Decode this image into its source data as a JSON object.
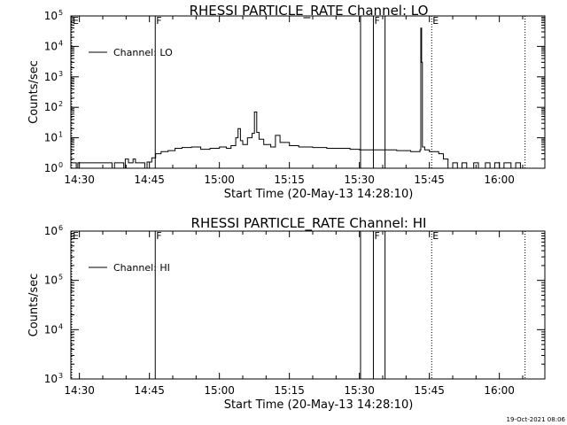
{
  "chart_data": [
    {
      "type": "line",
      "title": "RHESSI PARTICLE_RATE Channel: LO",
      "xlabel": "Start Time (20-May-13 14:28:10)",
      "ylabel": "Counts/sec",
      "y_scale": "log",
      "ylim": [
        1,
        100000
      ],
      "xlim": [
        "14:28:10",
        "16:09:45"
      ],
      "x_ticks": [
        "14:30",
        "14:45",
        "15:00",
        "15:15",
        "15:30",
        "15:45",
        "16:00"
      ],
      "y_ticks": [
        {
          "base": "10",
          "exp": "0"
        },
        {
          "base": "10",
          "exp": "1"
        },
        {
          "base": "10",
          "exp": "2"
        },
        {
          "base": "10",
          "exp": "3"
        },
        {
          "base": "10",
          "exp": "4"
        },
        {
          "base": "10",
          "exp": "5"
        }
      ],
      "legend": {
        "position": "top-left",
        "entries": [
          "Channel: LO"
        ]
      },
      "grid": false,
      "flag_markers": [
        {
          "label": "E",
          "time": "14:28:10",
          "style": "dotted"
        },
        {
          "label": "F",
          "time": "14:46:15",
          "style": "solid"
        },
        {
          "label": "",
          "time": "15:30:15",
          "style": "solid"
        },
        {
          "label": "F",
          "time": "15:33:00",
          "style": "solid"
        },
        {
          "label": "",
          "time": "15:35:30",
          "style": "solid"
        },
        {
          "label": "E",
          "time": "15:45:30",
          "style": "dotted"
        },
        {
          "label": "",
          "time": "16:05:30",
          "style": "dotted"
        }
      ],
      "series": [
        {
          "name": "Channel: LO",
          "points": [
            [
              "14:28:10",
              1.5
            ],
            [
              "14:29:00",
              1.5
            ],
            [
              "14:29:20",
              1.0
            ],
            [
              "14:29:40",
              1.5
            ],
            [
              "14:36:30",
              1.5
            ],
            [
              "14:37:00",
              1.0
            ],
            [
              "14:37:30",
              1.5
            ],
            [
              "14:39:00",
              1.5
            ],
            [
              "14:39:30",
              1.0
            ],
            [
              "14:39:50",
              2.0
            ],
            [
              "14:40:30",
              1.5
            ],
            [
              "14:41:30",
              2.0
            ],
            [
              "14:42:00",
              1.5
            ],
            [
              "14:43:30",
              1.5
            ],
            [
              "14:44:00",
              1.0
            ],
            [
              "14:44:30",
              1.6
            ],
            [
              "14:45:30",
              2.2
            ],
            [
              "14:46:20",
              3.0
            ],
            [
              "14:47:30",
              3.5
            ],
            [
              "14:49:00",
              3.8
            ],
            [
              "14:50:30",
              4.5
            ],
            [
              "14:52:00",
              4.8
            ],
            [
              "14:54:00",
              5.0
            ],
            [
              "14:56:00",
              4.2
            ],
            [
              "14:58:00",
              4.5
            ],
            [
              "15:00:00",
              5.0
            ],
            [
              "15:01:30",
              4.5
            ],
            [
              "15:02:30",
              5.5
            ],
            [
              "15:03:30",
              10.0
            ],
            [
              "15:04:00",
              20.0
            ],
            [
              "15:04:30",
              8.0
            ],
            [
              "15:05:00",
              6.0
            ],
            [
              "15:06:00",
              10.0
            ],
            [
              "15:07:00",
              14.0
            ],
            [
              "15:07:30",
              70.0
            ],
            [
              "15:08:00",
              15.0
            ],
            [
              "15:08:30",
              9.0
            ],
            [
              "15:09:30",
              6.0
            ],
            [
              "15:11:00",
              5.0
            ],
            [
              "15:12:00",
              12.0
            ],
            [
              "15:13:00",
              7.0
            ],
            [
              "15:15:00",
              5.5
            ],
            [
              "15:17:00",
              5.0
            ],
            [
              "15:20:00",
              4.8
            ],
            [
              "15:23:00",
              4.5
            ],
            [
              "15:26:00",
              4.5
            ],
            [
              "15:28:00",
              4.2
            ],
            [
              "15:30:00",
              4.0
            ],
            [
              "15:34:00",
              4.0
            ],
            [
              "15:36:00",
              4.0
            ],
            [
              "15:38:00",
              3.8
            ],
            [
              "15:41:00",
              3.5
            ],
            [
              "15:42:30",
              3.5
            ],
            [
              "15:43:00",
              4.0
            ],
            [
              "15:43:10",
              40000.0
            ],
            [
              "15:43:20",
              3000.0
            ],
            [
              "15:43:30",
              5.0
            ],
            [
              "15:44:00",
              4.0
            ],
            [
              "15:45:00",
              3.5
            ],
            [
              "15:47:00",
              3.0
            ],
            [
              "15:48:00",
              2.0
            ],
            [
              "15:49:00",
              1.0
            ],
            [
              "15:50:00",
              1.5
            ],
            [
              "15:51:00",
              1.0
            ],
            [
              "15:52:00",
              1.5
            ],
            [
              "15:53:00",
              1.0
            ],
            [
              "15:54:30",
              1.5
            ],
            [
              "15:55:30",
              1.0
            ],
            [
              "15:57:00",
              1.5
            ],
            [
              "15:58:00",
              1.0
            ],
            [
              "15:59:00",
              1.5
            ],
            [
              "16:00:00",
              1.0
            ],
            [
              "16:01:00",
              1.5
            ],
            [
              "16:02:30",
              1.0
            ],
            [
              "16:03:30",
              1.5
            ],
            [
              "16:04:30",
              1.0
            ]
          ]
        }
      ]
    },
    {
      "type": "line",
      "title": "RHESSI PARTICLE_RATE Channel: HI",
      "xlabel": "Start Time (20-May-13 14:28:10)",
      "ylabel": "Counts/sec",
      "y_scale": "log",
      "ylim": [
        1000,
        1000000
      ],
      "xlim": [
        "14:28:10",
        "16:09:45"
      ],
      "x_ticks": [
        "14:30",
        "14:45",
        "15:00",
        "15:15",
        "15:30",
        "15:45",
        "16:00"
      ],
      "y_ticks": [
        {
          "base": "10",
          "exp": "3"
        },
        {
          "base": "10",
          "exp": "4"
        },
        {
          "base": "10",
          "exp": "5"
        },
        {
          "base": "10",
          "exp": "6"
        }
      ],
      "legend": {
        "position": "top-left",
        "entries": [
          "Channel: HI"
        ]
      },
      "grid": false,
      "flag_markers": [
        {
          "label": "E",
          "time": "14:28:10",
          "style": "dotted"
        },
        {
          "label": "F",
          "time": "14:46:15",
          "style": "solid"
        },
        {
          "label": "",
          "time": "15:30:15",
          "style": "solid"
        },
        {
          "label": "F",
          "time": "15:33:00",
          "style": "solid"
        },
        {
          "label": "",
          "time": "15:35:30",
          "style": "solid"
        },
        {
          "label": "E",
          "time": "15:45:30",
          "style": "dotted"
        },
        {
          "label": "",
          "time": "16:05:30",
          "style": "dotted"
        }
      ],
      "series": []
    }
  ],
  "footer": {
    "timestamp": "19-Oct-2021 08:06"
  }
}
